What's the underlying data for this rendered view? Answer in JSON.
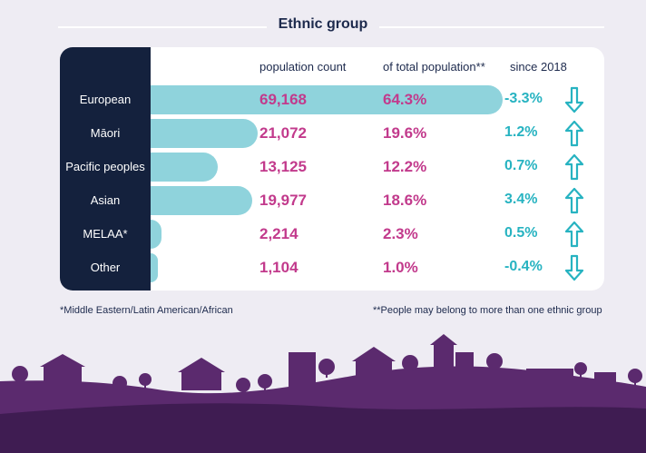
{
  "title": "Ethnic group",
  "headers": {
    "count": "population count",
    "percent": "of total population**",
    "change": "since 2018"
  },
  "footnotes": {
    "left": "*Middle Eastern/Latin American/African",
    "right": "**People may belong to more than one ethnic group"
  },
  "colors": {
    "bar": "#8fd3dc",
    "label_panel": "#14213d",
    "numbers": "#c23a8c",
    "change": "#27b3c1",
    "skyline": "#5b2a6e"
  },
  "chart_data": {
    "type": "bar",
    "orientation": "horizontal",
    "categories": [
      "European",
      "Māori",
      "Pacific peoples",
      "Asian",
      "MELAA*",
      "Other"
    ],
    "series": [
      {
        "values": [
          69168,
          21072,
          13125,
          19977,
          2214,
          1104
        ]
      }
    ],
    "count_labels": [
      "69,168",
      "21,072",
      "13,125",
      "19,977",
      "2,214",
      "1,104"
    ],
    "percent_values": [
      64.3,
      19.6,
      12.2,
      18.6,
      2.3,
      1.0
    ],
    "percent_labels": [
      "64.3%",
      "19.6%",
      "12.2%",
      "18.6%",
      "2.3%",
      "1.0%"
    ],
    "change_values": [
      -3.3,
      1.2,
      0.7,
      3.4,
      0.5,
      -0.4
    ],
    "change_labels": [
      "-3.3%",
      "1.2%",
      "0.7%",
      "3.4%",
      "0.5%",
      "-0.4%"
    ],
    "change_direction": [
      "down",
      "up",
      "up",
      "up",
      "up",
      "down"
    ],
    "xlim": [
      0,
      69168
    ],
    "grid": false,
    "legend": "none"
  }
}
